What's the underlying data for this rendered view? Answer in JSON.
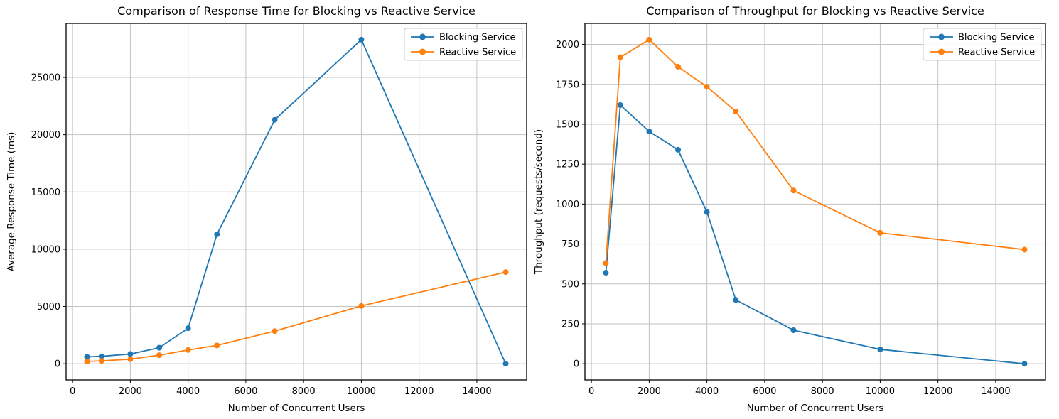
{
  "figure": {
    "background": "#ffffff",
    "text_color": "#000000",
    "grid_color": "#c2c2c2",
    "spine_color": "#000000",
    "legend_border_color": "#cccccc",
    "legend_background": "#ffffff"
  },
  "chart_data": [
    {
      "type": "line",
      "title": "Comparison of Response Time for Blocking vs Reactive Service",
      "xlabel": "Number of Concurrent Users",
      "ylabel": "Average Response Time (ms)",
      "x": [
        500,
        1000,
        2000,
        3000,
        4000,
        5000,
        7000,
        10000,
        15000
      ],
      "series": [
        {
          "name": "Blocking Service",
          "color": "#1f77b4",
          "values": [
            600,
            650,
            850,
            1400,
            3100,
            11300,
            21300,
            28300,
            0
          ]
        },
        {
          "name": "Reactive Service",
          "color": "#ff7f0e",
          "values": [
            200,
            250,
            400,
            750,
            1200,
            1600,
            2850,
            5050,
            8000
          ]
        }
      ],
      "xlim": [
        -225,
        15725
      ],
      "ylim": [
        -1415,
        29715
      ],
      "xticks": [
        0,
        2000,
        4000,
        6000,
        8000,
        10000,
        12000,
        14000
      ],
      "yticks": [
        0,
        5000,
        10000,
        15000,
        20000,
        25000
      ],
      "grid": true,
      "legend_position": "upper right",
      "legend_entries": [
        "Blocking Service",
        "Reactive Service"
      ],
      "marker": "circle"
    },
    {
      "type": "line",
      "title": "Comparison of Throughput for Blocking vs Reactive Service",
      "xlabel": "Number of Concurrent Users",
      "ylabel": "Throughput (requests/second)",
      "x": [
        500,
        1000,
        2000,
        3000,
        4000,
        5000,
        7000,
        10000,
        15000
      ],
      "series": [
        {
          "name": "Blocking Service",
          "color": "#1f77b4",
          "values": [
            570,
            1620,
            1455,
            1340,
            950,
            400,
            210,
            90,
            0
          ]
        },
        {
          "name": "Reactive Service",
          "color": "#ff7f0e",
          "values": [
            630,
            1920,
            2030,
            1860,
            1735,
            1580,
            1085,
            820,
            715
          ]
        }
      ],
      "xlim": [
        -225,
        15725
      ],
      "ylim": [
        -101.5,
        2131.5
      ],
      "xticks": [
        0,
        2000,
        4000,
        6000,
        8000,
        10000,
        12000,
        14000
      ],
      "yticks": [
        0,
        250,
        500,
        750,
        1000,
        1250,
        1500,
        1750,
        2000
      ],
      "grid": true,
      "legend_position": "upper right",
      "legend_entries": [
        "Blocking Service",
        "Reactive Service"
      ],
      "marker": "circle"
    }
  ]
}
